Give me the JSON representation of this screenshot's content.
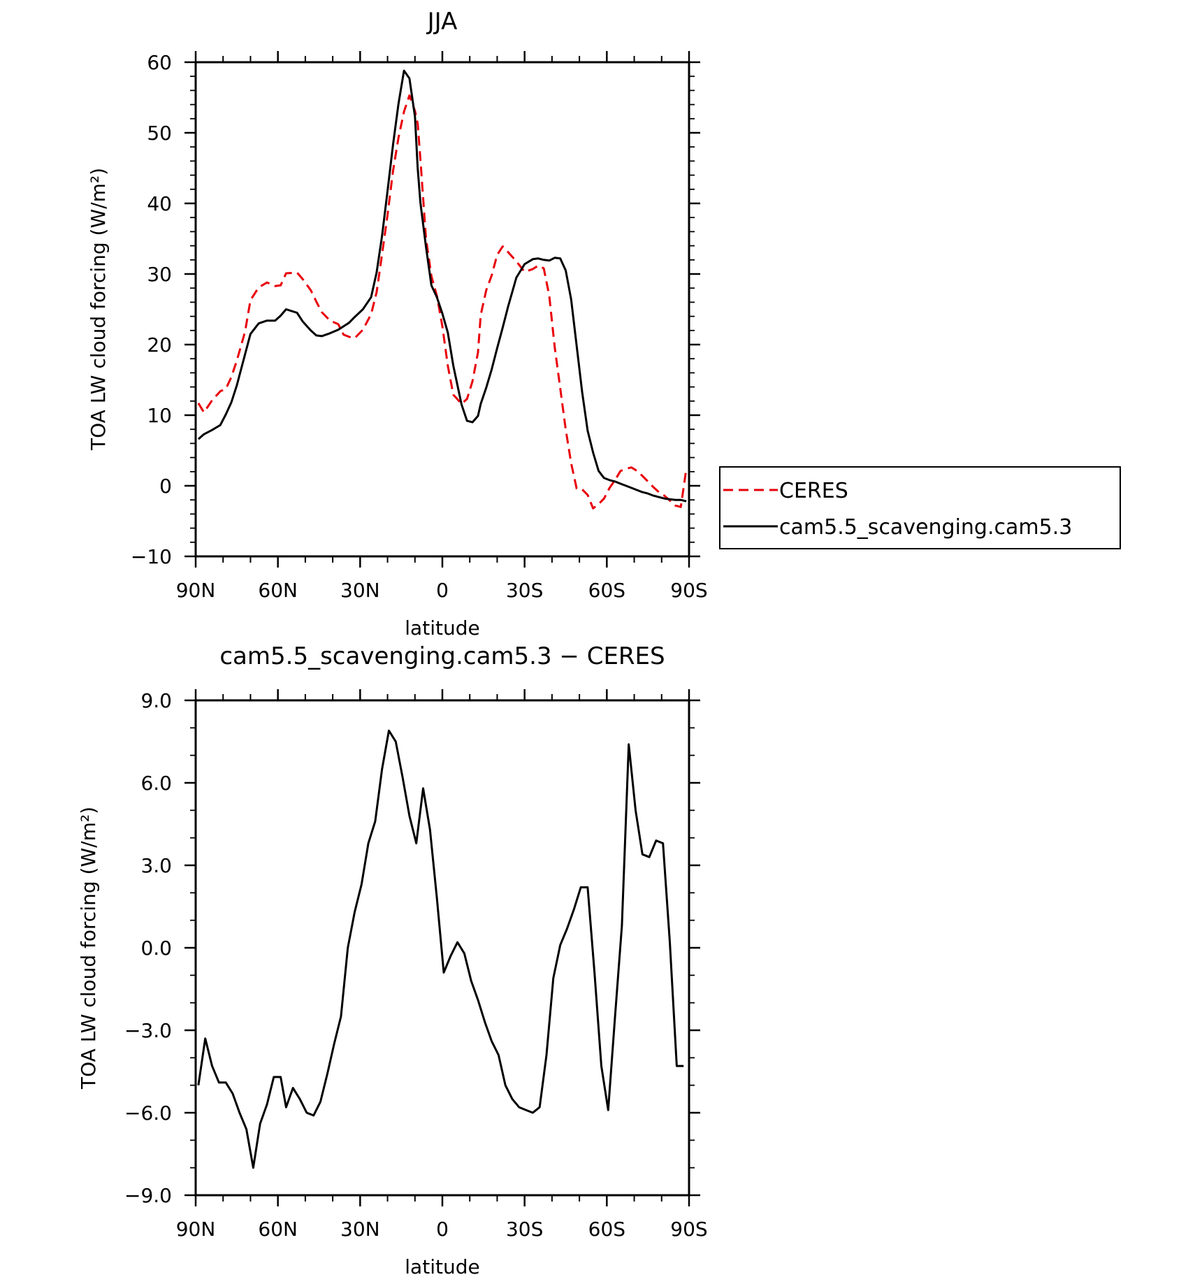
{
  "chart_data": [
    {
      "type": "line",
      "title": "JJA",
      "xlabel": "latitude",
      "ylabel": "TOA LW cloud forcing (W/m²)",
      "xlim": [
        90,
        -90
      ],
      "ylim": [
        -10,
        60
      ],
      "x_ticks": [
        {
          "value": 90,
          "label": "90N"
        },
        {
          "value": 60,
          "label": "60N"
        },
        {
          "value": 30,
          "label": "30N"
        },
        {
          "value": 0,
          "label": "0"
        },
        {
          "value": -30,
          "label": "30S"
        },
        {
          "value": -60,
          "label": "60S"
        },
        {
          "value": -90,
          "label": "90S"
        }
      ],
      "y_ticks": [
        {
          "value": 60,
          "label": "60"
        },
        {
          "value": 50,
          "label": "50"
        },
        {
          "value": 40,
          "label": "40"
        },
        {
          "value": 30,
          "label": "30"
        },
        {
          "value": 20,
          "label": "20"
        },
        {
          "value": 10,
          "label": "10"
        },
        {
          "value": 0,
          "label": "0"
        },
        {
          "value": -10,
          "label": "−10"
        }
      ],
      "legend": "right",
      "series": [
        {
          "name": "CERES",
          "color": "#e8000b",
          "dash": "dashed",
          "x": [
            89,
            87,
            84,
            81,
            79,
            77,
            75,
            72,
            70,
            67,
            64,
            61,
            59,
            57,
            53,
            51,
            48,
            46,
            44,
            41,
            38,
            36,
            34,
            32,
            29,
            26,
            24,
            22,
            20,
            18,
            16,
            14,
            12,
            10,
            9,
            8,
            6,
            4,
            2,
            0,
            -2,
            -4,
            -7,
            -9,
            -11,
            -13,
            -14,
            -16,
            -18,
            -20,
            -22,
            -24,
            -27,
            -30,
            -33,
            -35,
            -37,
            -39,
            -41,
            -43,
            -45,
            -47,
            -49,
            -51,
            -53,
            -55,
            -57,
            -59,
            -61,
            -63,
            -65,
            -67,
            -69,
            -71,
            -73,
            -75,
            -77,
            -79,
            -81,
            -83,
            -85,
            -87,
            -89
          ],
          "y": [
            11.7,
            10.4,
            12.1,
            13.4,
            13.7,
            15.4,
            17.7,
            21.8,
            26.3,
            28.1,
            28.8,
            28.3,
            28.4,
            30.1,
            30.2,
            29.3,
            27.7,
            26.1,
            24.6,
            23.4,
            22.9,
            21.4,
            21.1,
            20.9,
            22.1,
            24.3,
            27.4,
            32.8,
            38.4,
            44.6,
            49.3,
            53.0,
            55.3,
            53.1,
            51.3,
            46.2,
            35.1,
            29.7,
            26.9,
            22.6,
            17.0,
            12.9,
            11.6,
            12.3,
            14.8,
            18.9,
            24.2,
            27.7,
            29.8,
            32.7,
            33.9,
            33.1,
            31.8,
            30.3,
            30.7,
            31.2,
            30.8,
            26.9,
            19.6,
            13.8,
            8.0,
            3.2,
            -0.4,
            -0.5,
            -1.3,
            -3.2,
            -2.6,
            -1.8,
            -0.3,
            0.8,
            2.1,
            2.4,
            2.6,
            2.1,
            1.4,
            0.6,
            -0.2,
            -0.9,
            -1.4,
            -2.1,
            -2.8,
            -3.0,
            2.4
          ]
        },
        {
          "name": "cam5.5_scavenging.cam5.3",
          "color": "#000000",
          "dash": "solid",
          "x": [
            89,
            87,
            84,
            81,
            79,
            77,
            75,
            72,
            70,
            67,
            64,
            61,
            59,
            57,
            53,
            51,
            48,
            46,
            44,
            41,
            38,
            36,
            34,
            32,
            29,
            26,
            24,
            22,
            20,
            18,
            16,
            14,
            12,
            10,
            9,
            8,
            6,
            4,
            2,
            0,
            -2,
            -4,
            -7,
            -9,
            -11,
            -13,
            -14,
            -16,
            -18,
            -20,
            -22,
            -24,
            -27,
            -30,
            -33,
            -35,
            -37,
            -39,
            -41,
            -43,
            -45,
            -47,
            -49,
            -51,
            -53,
            -55,
            -57,
            -59,
            -61,
            -63,
            -65,
            -67,
            -69,
            -71,
            -73,
            -75,
            -77,
            -79,
            -81,
            -83,
            -85,
            -87,
            -89
          ],
          "y": [
            6.6,
            7.3,
            7.9,
            8.6,
            10.1,
            11.8,
            14.2,
            18.6,
            21.5,
            23.0,
            23.4,
            23.4,
            24.1,
            25.0,
            24.5,
            23.3,
            22.0,
            21.3,
            21.2,
            21.6,
            22.1,
            22.6,
            23.1,
            23.9,
            25.0,
            26.7,
            30.2,
            35.4,
            41.8,
            48.3,
            54.1,
            58.8,
            57.7,
            52.3,
            45.0,
            40.1,
            33.9,
            28.4,
            26.7,
            24.4,
            21.7,
            17.0,
            11.5,
            9.2,
            9.0,
            9.9,
            11.6,
            13.9,
            16.5,
            19.5,
            22.4,
            25.4,
            29.5,
            31.4,
            32.1,
            32.2,
            32.0,
            31.9,
            32.3,
            32.2,
            30.5,
            26.4,
            19.8,
            13.3,
            7.8,
            4.7,
            2.1,
            1.1,
            0.8,
            0.6,
            0.3,
            0.0,
            -0.3,
            -0.6,
            -0.9,
            -1.1,
            -1.4,
            -1.6,
            -1.8,
            -1.9,
            -2.0,
            -2.0,
            -2.2
          ]
        }
      ]
    },
    {
      "type": "line",
      "title": "cam5.5_scavenging.cam5.3 − CERES",
      "xlabel": "latitude",
      "ylabel": "TOA LW cloud forcing (W/m²)",
      "xlim": [
        90,
        -90
      ],
      "ylim": [
        -9,
        9
      ],
      "x_ticks": [
        {
          "value": 90,
          "label": "90N"
        },
        {
          "value": 60,
          "label": "60N"
        },
        {
          "value": 30,
          "label": "30N"
        },
        {
          "value": 0,
          "label": "0"
        },
        {
          "value": -30,
          "label": "30S"
        },
        {
          "value": -60,
          "label": "60S"
        },
        {
          "value": -90,
          "label": "90S"
        }
      ],
      "y_ticks": [
        {
          "value": 9,
          "label": "9.0"
        },
        {
          "value": 6,
          "label": "6.0"
        },
        {
          "value": 3,
          "label": "3.0"
        },
        {
          "value": 0,
          "label": "0.0"
        },
        {
          "value": -3,
          "label": "−3.0"
        },
        {
          "value": -6,
          "label": "−6.0"
        },
        {
          "value": -9,
          "label": "−9.0"
        }
      ],
      "series": [
        {
          "color": "#000000",
          "dash": "solid",
          "x": [
            89,
            86.5,
            84,
            81.5,
            79,
            76.5,
            74,
            71.5,
            69,
            66.5,
            64,
            61.5,
            59,
            57,
            54.5,
            52,
            49.5,
            47,
            44.5,
            42,
            39.5,
            37,
            34.5,
            32,
            29.5,
            27,
            24.5,
            22,
            19.5,
            17,
            14.5,
            12,
            9.5,
            7,
            4.5,
            2,
            -0.5,
            -3,
            -5.5,
            -8,
            -10.5,
            -13,
            -15.5,
            -18,
            -20.5,
            -23,
            -25.5,
            -28,
            -30.5,
            -33,
            -35.5,
            -38,
            -40.5,
            -43,
            -45.5,
            -48,
            -50.5,
            -53,
            -55.5,
            -58,
            -60.5,
            -63,
            -65.5,
            -68,
            -70.5,
            -73,
            -75.5,
            -78,
            -80.5,
            -83,
            -85.5,
            -88
          ],
          "y": [
            -5.0,
            -3.3,
            -4.3,
            -4.9,
            -4.9,
            -5.3,
            -6.0,
            -6.6,
            -8.0,
            -6.4,
            -5.7,
            -4.7,
            -4.7,
            -5.8,
            -5.1,
            -5.5,
            -6.0,
            -6.1,
            -5.6,
            -4.6,
            -3.5,
            -2.5,
            0.0,
            1.3,
            2.3,
            3.8,
            4.6,
            6.5,
            7.9,
            7.5,
            6.2,
            4.8,
            3.8,
            5.8,
            4.3,
            1.8,
            -0.9,
            -0.3,
            0.2,
            -0.2,
            -1.2,
            -1.9,
            -2.7,
            -3.4,
            -3.9,
            -5.0,
            -5.5,
            -5.8,
            -5.9,
            -6.0,
            -5.8,
            -3.9,
            -1.1,
            0.1,
            0.7,
            1.4,
            2.2,
            2.2,
            -0.9,
            -4.3,
            -5.9,
            -2.5,
            0.8,
            7.4,
            5.0,
            3.4,
            3.3,
            3.9,
            3.8,
            0.2,
            -4.3,
            -4.3
          ]
        }
      ]
    }
  ]
}
